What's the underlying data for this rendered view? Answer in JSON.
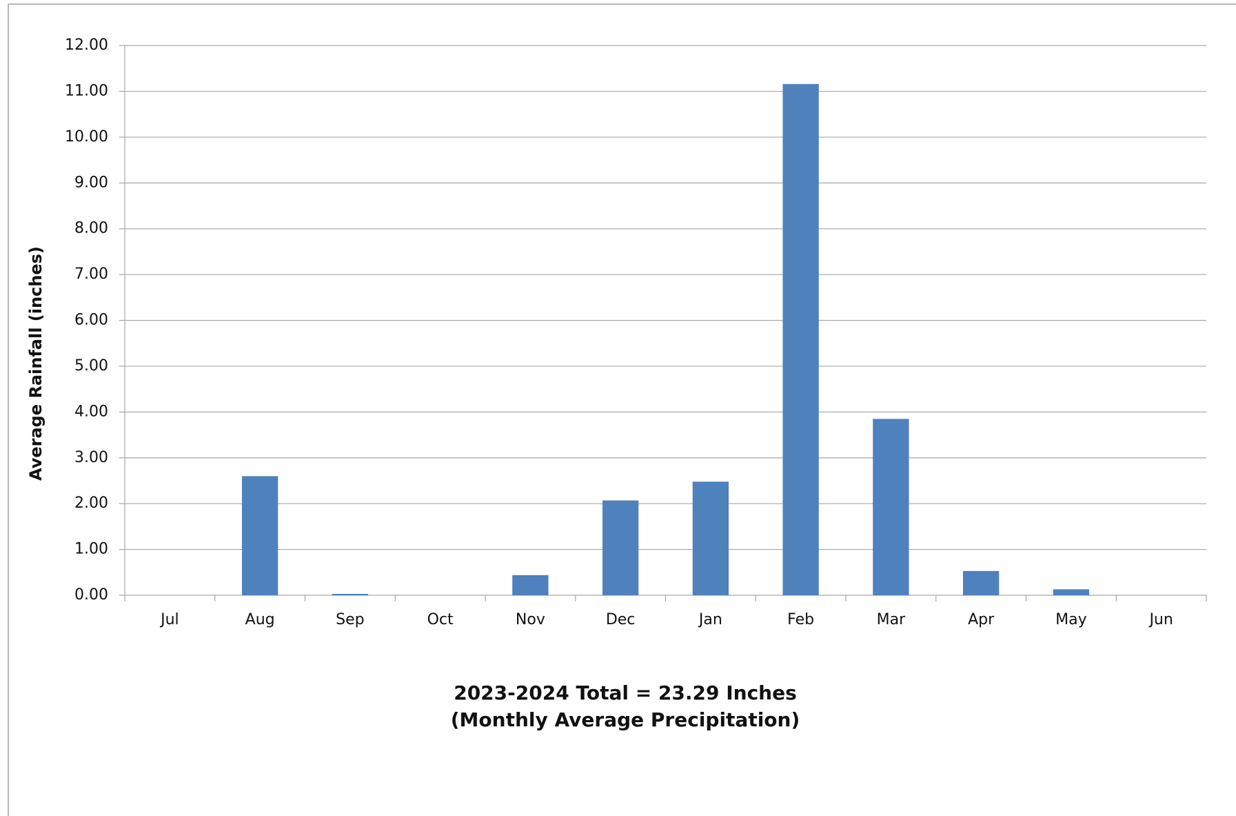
{
  "chart_data": {
    "type": "bar",
    "title": "2023-2024 Total = 23.29 Inches",
    "subtitle": "(Monthly Average Precipitation)",
    "y_label": "Average Rainfall (inches)",
    "categories": [
      "Jul",
      "Aug",
      "Sep",
      "Oct",
      "Nov",
      "Dec",
      "Jan",
      "Feb",
      "Mar",
      "Apr",
      "May",
      "Jun"
    ],
    "values": [
      0,
      2.6,
      0.03,
      0,
      0.44,
      2.07,
      2.48,
      11.16,
      3.85,
      0.53,
      0.13,
      0
    ],
    "color": "#4f81bd",
    "ylim": [
      0,
      12
    ],
    "yticks": [
      {
        "value": 0,
        "label": "0.00"
      },
      {
        "value": 1,
        "label": "1.00"
      },
      {
        "value": 2,
        "label": "2.00"
      },
      {
        "value": 3,
        "label": "3.00"
      },
      {
        "value": 4,
        "label": "4.00"
      },
      {
        "value": 5,
        "label": "5.00"
      },
      {
        "value": 6,
        "label": "6.00"
      },
      {
        "value": 7,
        "label": "7.00"
      },
      {
        "value": 8,
        "label": "8.00"
      },
      {
        "value": 9,
        "label": "9.00"
      },
      {
        "value": 10,
        "label": "10.00"
      },
      {
        "value": 11,
        "label": "11.00"
      },
      {
        "value": 12,
        "label": "12.00"
      }
    ],
    "grid": true
  }
}
